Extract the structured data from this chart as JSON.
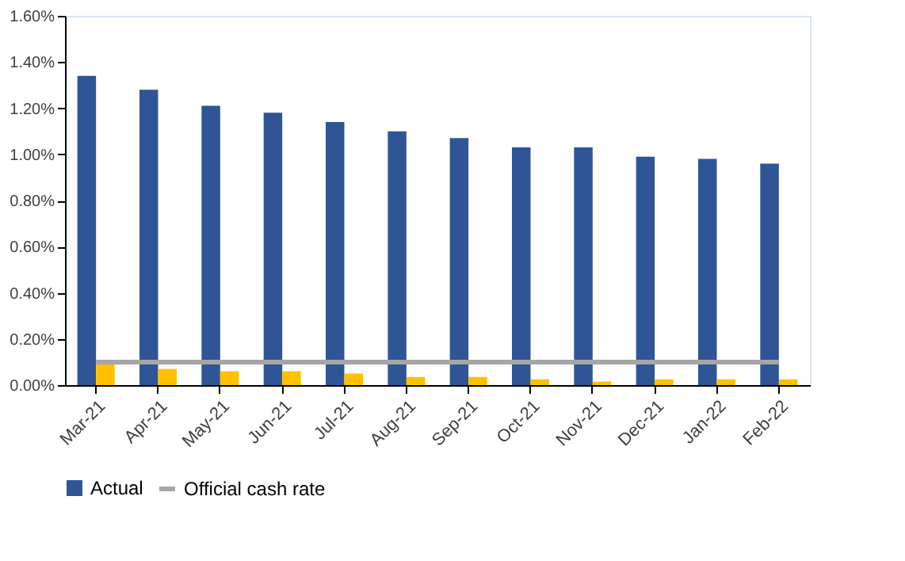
{
  "chart_data": {
    "type": "bar",
    "categories": [
      "Mar-21",
      "Apr-21",
      "May-21",
      "Jun-21",
      "Jul-21",
      "Aug-21",
      "Sep-21",
      "Oct-21",
      "Nov-21",
      "Dec-21",
      "Jan-22",
      "Feb-22"
    ],
    "series": [
      {
        "name": "Actual",
        "color": "#2f5597",
        "values": [
          1.34,
          1.28,
          1.21,
          1.18,
          1.14,
          1.1,
          1.07,
          1.03,
          1.03,
          0.99,
          0.98,
          0.96
        ]
      },
      {
        "color": "#ffc000",
        "values": [
          0.09,
          0.07,
          0.06,
          0.06,
          0.05,
          0.035,
          0.035,
          0.025,
          0.015,
          0.025,
          0.025,
          0.025
        ]
      },
      {
        "name": "Official cash rate",
        "type": "line",
        "color": "#a6a6a6",
        "values": [
          0.1,
          0.1,
          0.1,
          0.1,
          0.1,
          0.1,
          0.1,
          0.1,
          0.1,
          0.1,
          0.1,
          0.1
        ]
      }
    ],
    "ylim": [
      0,
      1.6
    ],
    "yticks": [
      {
        "value": 0,
        "label": "0.00%"
      },
      {
        "value": 0.2,
        "label": "0.20%"
      },
      {
        "value": 0.4,
        "label": "0.40%"
      },
      {
        "value": 0.6,
        "label": "0.60%"
      },
      {
        "value": 0.8,
        "label": "0.80%"
      },
      {
        "value": 1.0,
        "label": "1.00%"
      },
      {
        "value": 1.2,
        "label": "1.20%"
      },
      {
        "value": 1.4,
        "label": "1.40%"
      },
      {
        "value": 1.6,
        "label": "1.60%"
      }
    ],
    "grid": false,
    "legend": "bottom"
  }
}
